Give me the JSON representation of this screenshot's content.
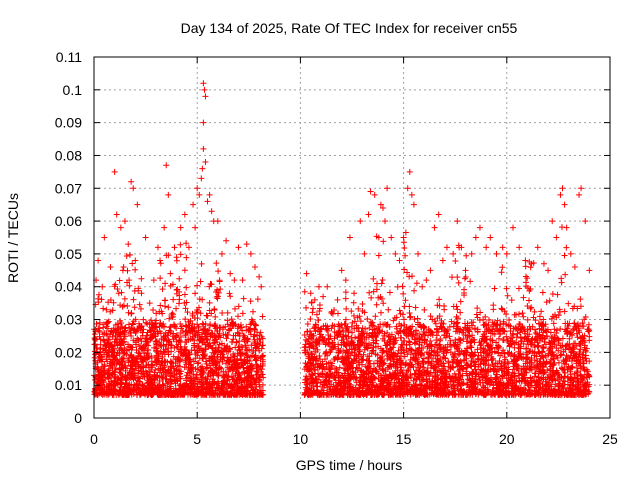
{
  "chart_data": {
    "type": "scatter",
    "title": "Day 134 of 2025, Rate Of TEC Index for receiver cn55",
    "xlabel": "GPS time / hours",
    "ylabel": "ROTI / TECUs",
    "xlim": [
      0,
      25
    ],
    "ylim": [
      0,
      0.11
    ],
    "xticks": [
      0,
      5,
      10,
      15,
      20,
      25
    ],
    "xtick_labels": [
      "0",
      "5",
      "10",
      "15",
      "20",
      "25"
    ],
    "yticks": [
      0,
      0.01,
      0.02,
      0.03,
      0.04,
      0.05,
      0.06,
      0.07,
      0.08,
      0.09,
      0.1,
      0.11
    ],
    "ytick_labels": [
      "0",
      "0.01",
      "0.02",
      "0.03",
      "0.04",
      "0.05",
      "0.06",
      "0.07",
      "0.08",
      "0.09",
      "0.1",
      "0.11"
    ],
    "grid": true,
    "marker": "+",
    "color": "#ff0000",
    "series": [
      {
        "name": "ROTI",
        "points": [
          [
            0.0,
            0.013
          ],
          [
            0.1,
            0.042
          ],
          [
            0.2,
            0.048
          ],
          [
            0.3,
            0.021
          ],
          [
            0.4,
            0.04
          ],
          [
            0.5,
            0.055
          ],
          [
            0.6,
            0.033
          ],
          [
            0.8,
            0.046
          ],
          [
            0.9,
            0.02
          ],
          [
            1.0,
            0.075
          ],
          [
            1.1,
            0.062
          ],
          [
            1.2,
            0.038
          ],
          [
            1.3,
            0.058
          ],
          [
            1.4,
            0.045
          ],
          [
            1.5,
            0.06
          ],
          [
            1.7,
            0.042
          ],
          [
            1.8,
            0.072
          ],
          [
            1.9,
            0.07
          ],
          [
            2.0,
            0.048
          ],
          [
            2.1,
            0.065
          ],
          [
            2.3,
            0.038
          ],
          [
            2.5,
            0.055
          ],
          [
            2.7,
            0.035
          ],
          [
            2.9,
            0.042
          ],
          [
            3.1,
            0.052
          ],
          [
            3.2,
            0.048
          ],
          [
            3.4,
            0.058
          ],
          [
            3.5,
            0.077
          ],
          [
            3.6,
            0.068
          ],
          [
            3.7,
            0.044
          ],
          [
            3.9,
            0.052
          ],
          [
            4.0,
            0.049
          ],
          [
            4.2,
            0.058
          ],
          [
            4.4,
            0.062
          ],
          [
            4.6,
            0.052
          ],
          [
            4.8,
            0.065
          ],
          [
            4.9,
            0.058
          ],
          [
            5.0,
            0.07
          ],
          [
            5.1,
            0.068
          ],
          [
            5.2,
            0.073
          ],
          [
            5.3,
            0.102
          ],
          [
            5.35,
            0.1
          ],
          [
            5.4,
            0.098
          ],
          [
            5.3,
            0.09
          ],
          [
            5.3,
            0.082
          ],
          [
            5.25,
            0.076
          ],
          [
            5.4,
            0.078
          ],
          [
            5.5,
            0.066
          ],
          [
            5.6,
            0.068
          ],
          [
            5.7,
            0.063
          ],
          [
            5.8,
            0.06
          ],
          [
            6.0,
            0.06
          ],
          [
            6.2,
            0.05
          ],
          [
            6.4,
            0.054
          ],
          [
            6.6,
            0.044
          ],
          [
            6.8,
            0.042
          ],
          [
            7.0,
            0.052
          ],
          [
            7.2,
            0.042
          ],
          [
            7.4,
            0.053
          ],
          [
            7.6,
            0.05
          ],
          [
            7.8,
            0.046
          ],
          [
            8.0,
            0.043
          ],
          [
            8.1,
            0.04
          ],
          [
            10.3,
            0.044
          ],
          [
            10.5,
            0.038
          ],
          [
            10.7,
            0.036
          ],
          [
            10.9,
            0.04
          ],
          [
            11.1,
            0.037
          ],
          [
            11.3,
            0.04
          ],
          [
            11.5,
            0.032
          ],
          [
            11.8,
            0.036
          ],
          [
            12.0,
            0.045
          ],
          [
            12.2,
            0.042
          ],
          [
            12.4,
            0.055
          ],
          [
            12.6,
            0.038
          ],
          [
            12.9,
            0.06
          ],
          [
            13.1,
            0.05
          ],
          [
            13.3,
            0.062
          ],
          [
            13.4,
            0.069
          ],
          [
            13.6,
            0.068
          ],
          [
            13.8,
            0.055
          ],
          [
            13.9,
            0.065
          ],
          [
            14.0,
            0.064
          ],
          [
            14.1,
            0.06
          ],
          [
            14.2,
            0.07
          ],
          [
            14.4,
            0.055
          ],
          [
            14.6,
            0.05
          ],
          [
            14.8,
            0.048
          ],
          [
            15.0,
            0.055
          ],
          [
            15.2,
            0.07
          ],
          [
            15.3,
            0.075
          ],
          [
            15.4,
            0.068
          ],
          [
            15.5,
            0.065
          ],
          [
            15.7,
            0.05
          ],
          [
            15.9,
            0.04
          ],
          [
            16.1,
            0.042
          ],
          [
            16.3,
            0.045
          ],
          [
            16.5,
            0.058
          ],
          [
            16.7,
            0.062
          ],
          [
            16.9,
            0.048
          ],
          [
            17.1,
            0.052
          ],
          [
            17.4,
            0.05
          ],
          [
            17.6,
            0.06
          ],
          [
            17.8,
            0.052
          ],
          [
            18.0,
            0.045
          ],
          [
            18.3,
            0.05
          ],
          [
            18.5,
            0.055
          ],
          [
            18.7,
            0.058
          ],
          [
            19.0,
            0.052
          ],
          [
            19.2,
            0.055
          ],
          [
            19.5,
            0.05
          ],
          [
            19.8,
            0.052
          ],
          [
            20.0,
            0.05
          ],
          [
            20.3,
            0.058
          ],
          [
            20.6,
            0.052
          ],
          [
            20.9,
            0.048
          ],
          [
            21.2,
            0.047
          ],
          [
            21.5,
            0.052
          ],
          [
            21.8,
            0.047
          ],
          [
            22.0,
            0.045
          ],
          [
            22.2,
            0.06
          ],
          [
            22.4,
            0.055
          ],
          [
            22.6,
            0.068
          ],
          [
            22.7,
            0.07
          ],
          [
            22.8,
            0.065
          ],
          [
            22.9,
            0.058
          ],
          [
            23.1,
            0.05
          ],
          [
            23.3,
            0.046
          ],
          [
            23.5,
            0.068
          ],
          [
            23.6,
            0.07
          ],
          [
            23.8,
            0.06
          ],
          [
            24.0,
            0.045
          ]
        ]
      }
    ]
  }
}
